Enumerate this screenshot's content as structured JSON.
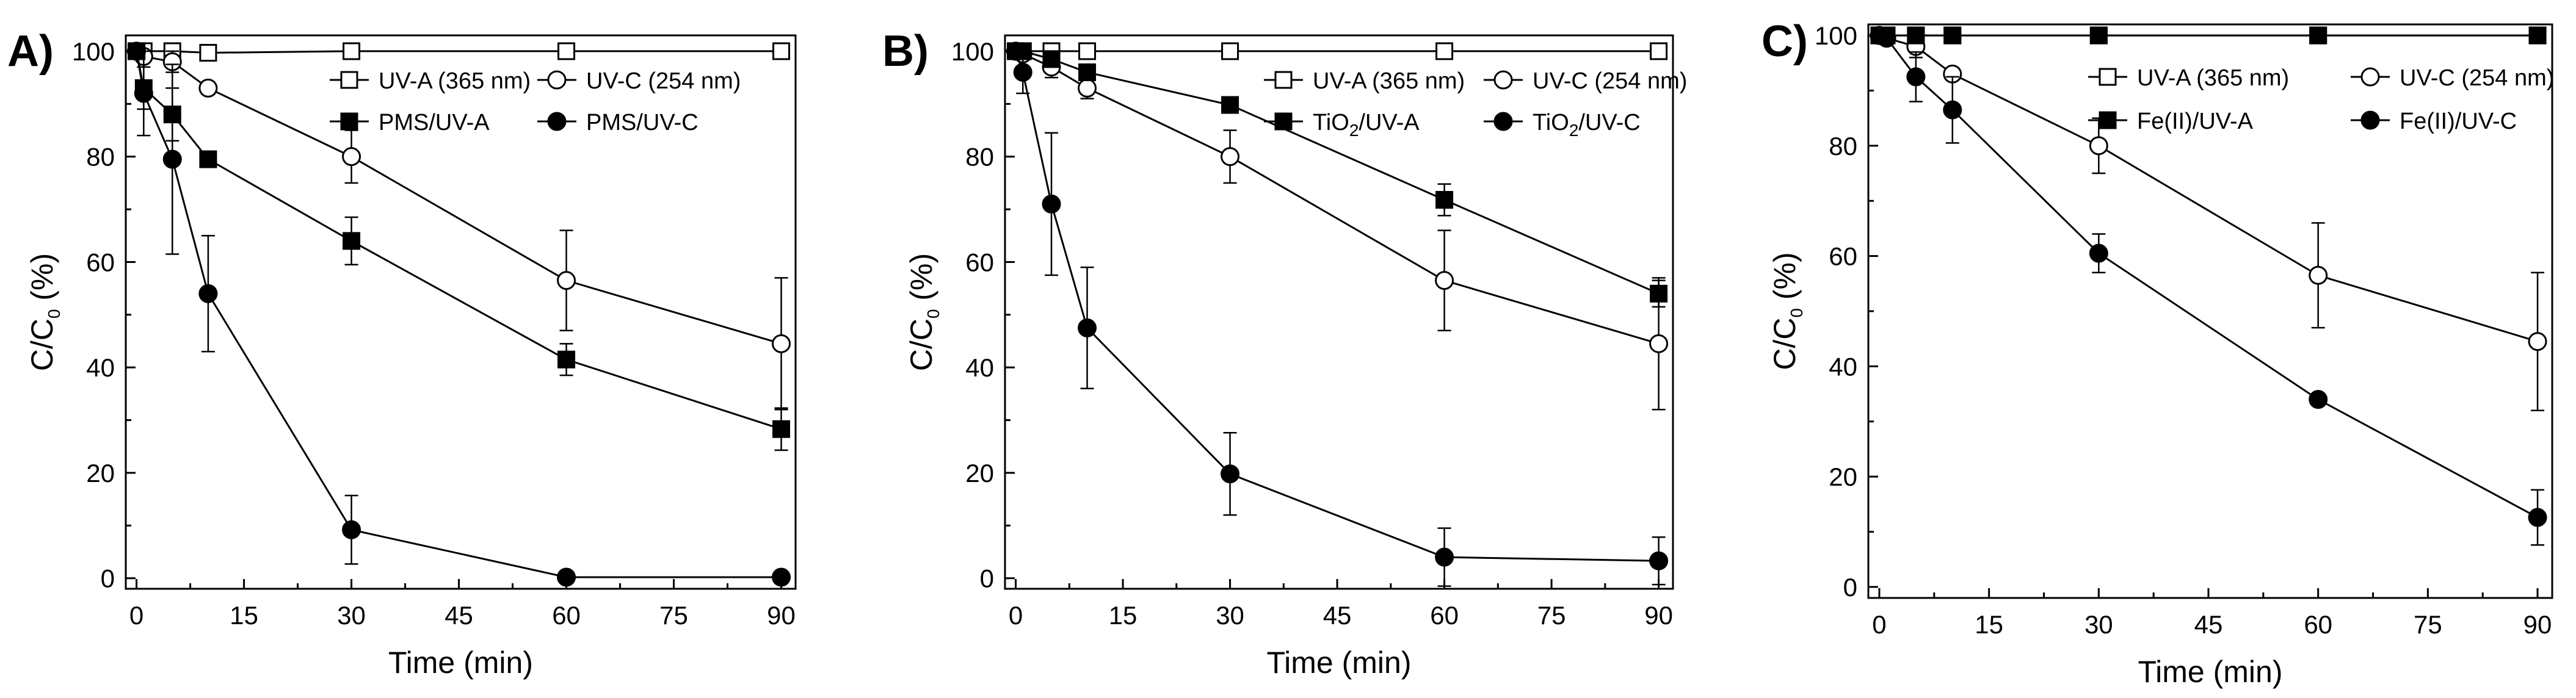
{
  "figure": {
    "panels": [
      {
        "tag": "A)"
      },
      {
        "tag": "B)"
      },
      {
        "tag": "C)"
      }
    ]
  },
  "chart_data": [
    {
      "type": "line",
      "panel": "A)",
      "xlabel": "Time (min)",
      "ylabel": "C/C0 (%)",
      "xlim": [
        -1.5,
        92
      ],
      "ylim": [
        -2,
        103
      ],
      "xticks": [
        0,
        15,
        30,
        45,
        60,
        75,
        90
      ],
      "yticks": [
        0,
        20,
        40,
        60,
        80,
        100
      ],
      "series": [
        {
          "name": "UV-A (365 nm)",
          "marker": "square-open",
          "x": [
            0,
            1,
            5,
            10,
            30,
            60,
            90
          ],
          "y": [
            100,
            100,
            100,
            99.7,
            100,
            100,
            100
          ],
          "err": [
            0,
            0,
            0,
            0,
            0,
            0,
            0
          ]
        },
        {
          "name": "UV-C (254 nm)",
          "marker": "circle-open",
          "x": [
            0,
            1,
            5,
            10,
            30,
            60,
            90
          ],
          "y": [
            100,
            99,
            98,
            93,
            80,
            56.5,
            44.5
          ],
          "err": [
            0,
            0,
            2,
            0,
            5,
            9.5,
            12.5
          ]
        },
        {
          "name": "PMS/UV-A",
          "marker": "square-filled",
          "x": [
            0,
            1,
            5,
            10,
            30,
            60,
            90
          ],
          "y": [
            100,
            93,
            88,
            79.5,
            64,
            41.5,
            28.3
          ],
          "err": [
            0,
            4,
            5,
            0,
            4.5,
            3,
            4
          ]
        },
        {
          "name": "PMS/UV-C",
          "marker": "circle-filled",
          "x": [
            0,
            1,
            5,
            10,
            30,
            60,
            90
          ],
          "y": [
            100,
            92,
            79.5,
            54,
            9.2,
            0.2,
            0.2
          ],
          "err": [
            0,
            8,
            18,
            11,
            6.5,
            0,
            0
          ]
        }
      ]
    },
    {
      "type": "line",
      "panel": "B)",
      "xlabel": "Time (min)",
      "ylabel": "C/C0 (%)",
      "xlim": [
        -1.5,
        92
      ],
      "ylim": [
        -2,
        103
      ],
      "xticks": [
        0,
        15,
        30,
        45,
        60,
        75,
        90
      ],
      "yticks": [
        0,
        20,
        40,
        60,
        80,
        100
      ],
      "series": [
        {
          "name": "UV-A (365 nm)",
          "marker": "square-open",
          "x": [
            0,
            1,
            5,
            10,
            30,
            60,
            90
          ],
          "y": [
            100,
            100,
            100,
            100,
            100,
            100,
            100
          ],
          "err": [
            0,
            0,
            0,
            0,
            0,
            0,
            0
          ]
        },
        {
          "name": "UV-C (254 nm)",
          "marker": "circle-open",
          "x": [
            0,
            1,
            5,
            10,
            30,
            60,
            90
          ],
          "y": [
            100,
            99.5,
            97,
            93,
            80,
            56.5,
            44.5
          ],
          "err": [
            0,
            0,
            2,
            2,
            5,
            9.5,
            12.5
          ]
        },
        {
          "name": "TiO2/UV-A",
          "marker": "square-filled",
          "x": [
            0,
            1,
            5,
            10,
            30,
            60,
            90
          ],
          "y": [
            100,
            100,
            98.5,
            96,
            89.8,
            71.8,
            54
          ],
          "err": [
            0,
            0,
            0,
            0,
            0,
            3,
            2.5
          ]
        },
        {
          "name": "TiO2/UV-C",
          "marker": "circle-filled",
          "x": [
            0,
            1,
            5,
            10,
            30,
            60,
            90
          ],
          "y": [
            100,
            96,
            71,
            47.5,
            19.8,
            4,
            3.3
          ],
          "err": [
            0,
            4,
            13.5,
            11.5,
            7.8,
            5.5,
            4.5
          ]
        }
      ]
    },
    {
      "type": "line",
      "panel": "C)",
      "xlabel": "Time (min)",
      "ylabel": "C/C0 (%)",
      "xlim": [
        -1.5,
        92
      ],
      "ylim": [
        -2,
        102
      ],
      "xticks": [
        0,
        15,
        30,
        45,
        60,
        75,
        90
      ],
      "yticks": [
        0,
        20,
        40,
        60,
        80,
        100
      ],
      "series": [
        {
          "name": "UV-A (365 nm)",
          "marker": "square-open",
          "x": [
            0,
            1,
            5,
            10,
            30,
            60,
            90
          ],
          "y": [
            100,
            100,
            100,
            100,
            100,
            100,
            100
          ],
          "err": [
            0,
            0,
            0,
            0,
            0,
            0,
            0
          ]
        },
        {
          "name": "UV-C (254 nm)",
          "marker": "circle-open",
          "x": [
            0,
            1,
            5,
            10,
            30,
            60,
            90
          ],
          "y": [
            100,
            99.5,
            98,
            93,
            80,
            56.5,
            44.5
          ],
          "err": [
            0,
            0,
            2,
            0,
            5,
            9.5,
            12.5
          ]
        },
        {
          "name": "Fe(II)/UV-A",
          "marker": "square-filled",
          "x": [
            0,
            1,
            5,
            10,
            30,
            60,
            90
          ],
          "y": [
            100,
            100,
            100,
            100,
            100,
            100,
            100
          ],
          "err": [
            0,
            0,
            0,
            0,
            0,
            0,
            0
          ]
        },
        {
          "name": "Fe(II)/UV-C",
          "marker": "circle-filled",
          "x": [
            0,
            1,
            5,
            10,
            30,
            60,
            90
          ],
          "y": [
            100,
            99.5,
            92.5,
            86.5,
            60.5,
            34,
            12.6
          ],
          "err": [
            0,
            0,
            4.5,
            6,
            3.5,
            0,
            5
          ]
        }
      ]
    }
  ]
}
